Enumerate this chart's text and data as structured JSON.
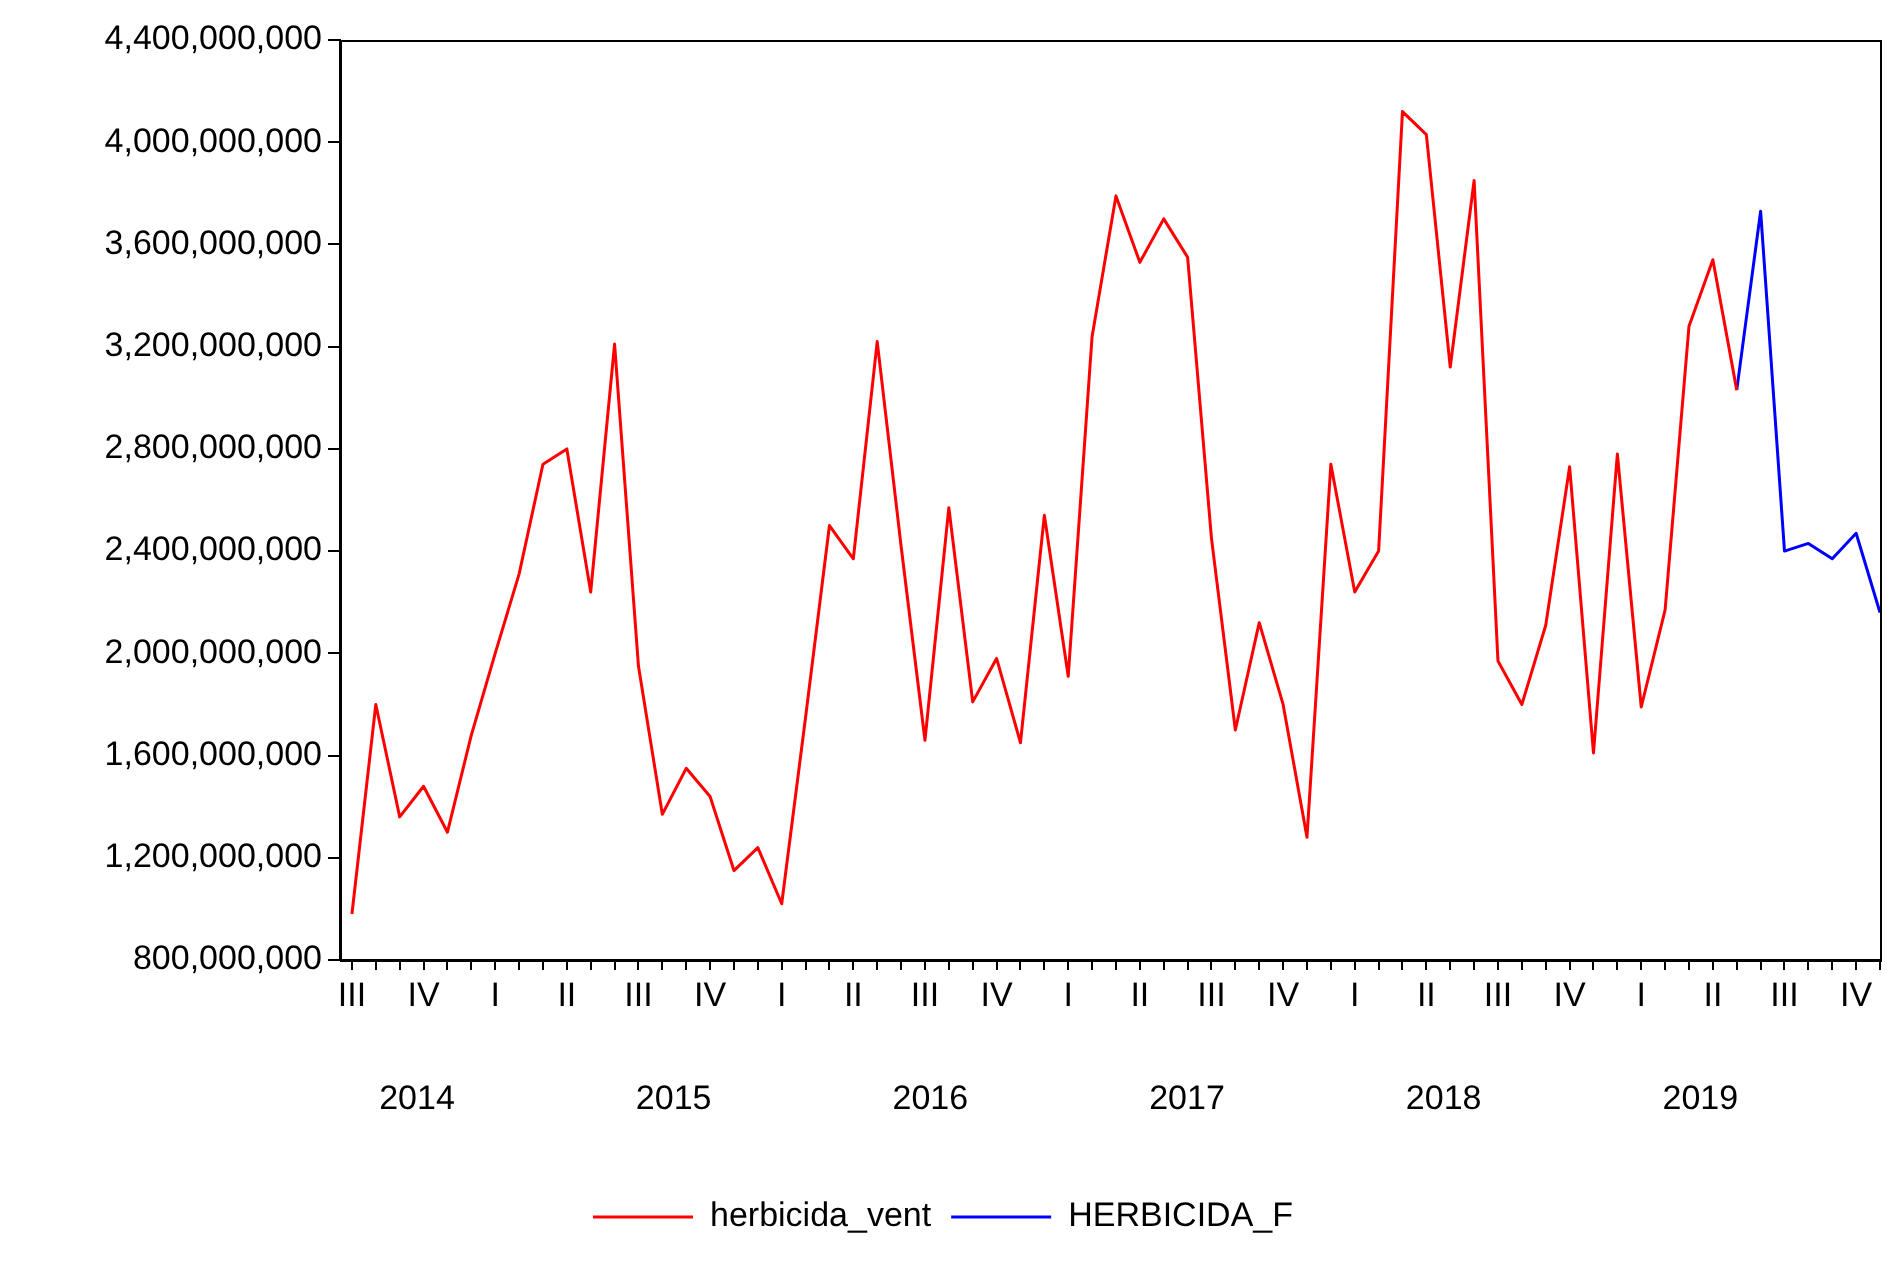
{
  "chart_data": {
    "type": "line",
    "categories": [
      "III",
      null,
      null,
      "IV",
      null,
      null,
      "I",
      null,
      null,
      "II",
      null,
      null,
      "III",
      null,
      null,
      "IV",
      null,
      null,
      "I",
      null,
      null,
      "II",
      null,
      null,
      "III",
      null,
      null,
      "IV",
      null,
      null,
      "I",
      null,
      null,
      "II",
      null,
      null,
      "III",
      null,
      null,
      "IV",
      null,
      null,
      "I",
      null,
      null,
      "II",
      null,
      null,
      "III",
      null,
      null,
      "IV",
      null,
      null,
      "I",
      null,
      null,
      "II",
      null,
      null,
      "III",
      null,
      null,
      "IV",
      null
    ],
    "series": [
      {
        "name": "HERBICIDA_F",
        "color": "#0000ff",
        "values": [
          null,
          null,
          null,
          null,
          null,
          null,
          null,
          null,
          null,
          null,
          null,
          null,
          null,
          null,
          null,
          null,
          null,
          null,
          null,
          null,
          null,
          null,
          null,
          null,
          null,
          null,
          null,
          null,
          null,
          null,
          null,
          null,
          null,
          null,
          null,
          null,
          null,
          null,
          null,
          null,
          null,
          null,
          null,
          null,
          null,
          null,
          null,
          null,
          null,
          null,
          null,
          null,
          null,
          null,
          null,
          null,
          null,
          null,
          3030000000,
          3730000000,
          2400000000,
          2430000000,
          2370000000,
          2470000000,
          2160000000
        ]
      },
      {
        "name": "herbicida_vent",
        "color": "#ff0000",
        "values": [
          980000000,
          1800000000,
          1360000000,
          1480000000,
          1300000000,
          1680000000,
          2000000000,
          2310000000,
          2740000000,
          2800000000,
          2240000000,
          3210000000,
          1950000000,
          1370000000,
          1550000000,
          1440000000,
          1150000000,
          1240000000,
          1020000000,
          1750000000,
          2500000000,
          2370000000,
          3220000000,
          2420000000,
          1660000000,
          2570000000,
          1810000000,
          1980000000,
          1650000000,
          2540000000,
          1910000000,
          3240000000,
          3790000000,
          3530000000,
          3700000000,
          3550000000,
          2450000000,
          1700000000,
          2120000000,
          1800000000,
          1280000000,
          2740000000,
          2240000000,
          2400000000,
          4120000000,
          4030000000,
          3120000000,
          3850000000,
          1970000000,
          1800000000,
          2110000000,
          2730000000,
          1610000000,
          2780000000,
          1790000000,
          2170000000,
          3280000000,
          3540000000,
          3030000000,
          null,
          null,
          null,
          null,
          null,
          null
        ]
      }
    ],
    "ylim": [
      800000000,
      4400000000
    ],
    "yticks": [
      {
        "value": 800000000,
        "label": "800,000,000"
      },
      {
        "value": 1200000000,
        "label": "1,200,000,000"
      },
      {
        "value": 1600000000,
        "label": "1,600,000,000"
      },
      {
        "value": 2000000000,
        "label": "2,000,000,000"
      },
      {
        "value": 2400000000,
        "label": "2,400,000,000"
      },
      {
        "value": 2800000000,
        "label": "2,800,000,000"
      },
      {
        "value": 3200000000,
        "label": "3,200,000,000"
      },
      {
        "value": 3600000000,
        "label": "3,600,000,000"
      },
      {
        "value": 4000000000,
        "label": "4,000,000,000"
      },
      {
        "value": 4400000000,
        "label": "4,400,000,000"
      }
    ],
    "annotations": [
      "2014",
      "2015",
      "2016",
      "2017",
      "2018",
      "2019"
    ],
    "legend": "bottom",
    "grid": false,
    "marker": "none",
    "line_style": "solid"
  }
}
